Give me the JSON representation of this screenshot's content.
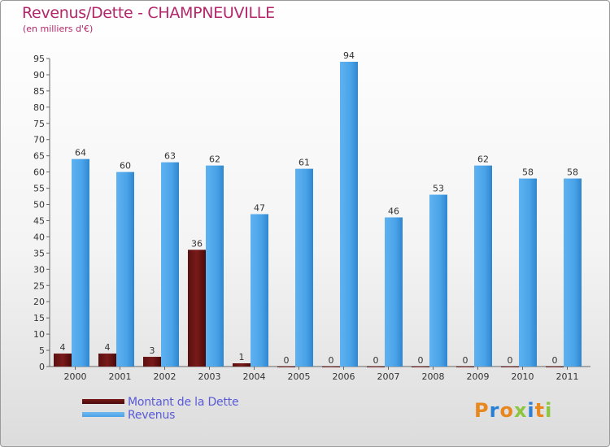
{
  "title": "Revenus/Dette - CHAMPNEUVILLE",
  "subtitle": "(en milliers d'€)",
  "colors": {
    "dette": "#7a1a1a",
    "revenus": "#4aa3e8",
    "title": "#b3266a",
    "legend_text": "#5a5ad8"
  },
  "legend": {
    "dette": "Montant de la Dette",
    "revenus": "Revenus"
  },
  "logo": {
    "text": "Proxiti"
  },
  "chart_data": {
    "type": "bar",
    "title": "Revenus/Dette - CHAMPNEUVILLE",
    "subtitle": "(en milliers d'€)",
    "xlabel": "",
    "ylabel": "",
    "ylim": [
      0,
      95
    ],
    "ytick_step": 5,
    "grid": false,
    "legend_position": "bottom-left",
    "categories": [
      "2000",
      "2001",
      "2002",
      "2003",
      "2004",
      "2005",
      "2006",
      "2007",
      "2008",
      "2009",
      "2010",
      "2011"
    ],
    "series": [
      {
        "name": "Montant de la Dette",
        "values": [
          4,
          4,
          3,
          36,
          1,
          0,
          0,
          0,
          0,
          0,
          0,
          0
        ]
      },
      {
        "name": "Revenus",
        "values": [
          64,
          60,
          63,
          62,
          47,
          61,
          94,
          46,
          53,
          62,
          58,
          58
        ]
      }
    ]
  }
}
